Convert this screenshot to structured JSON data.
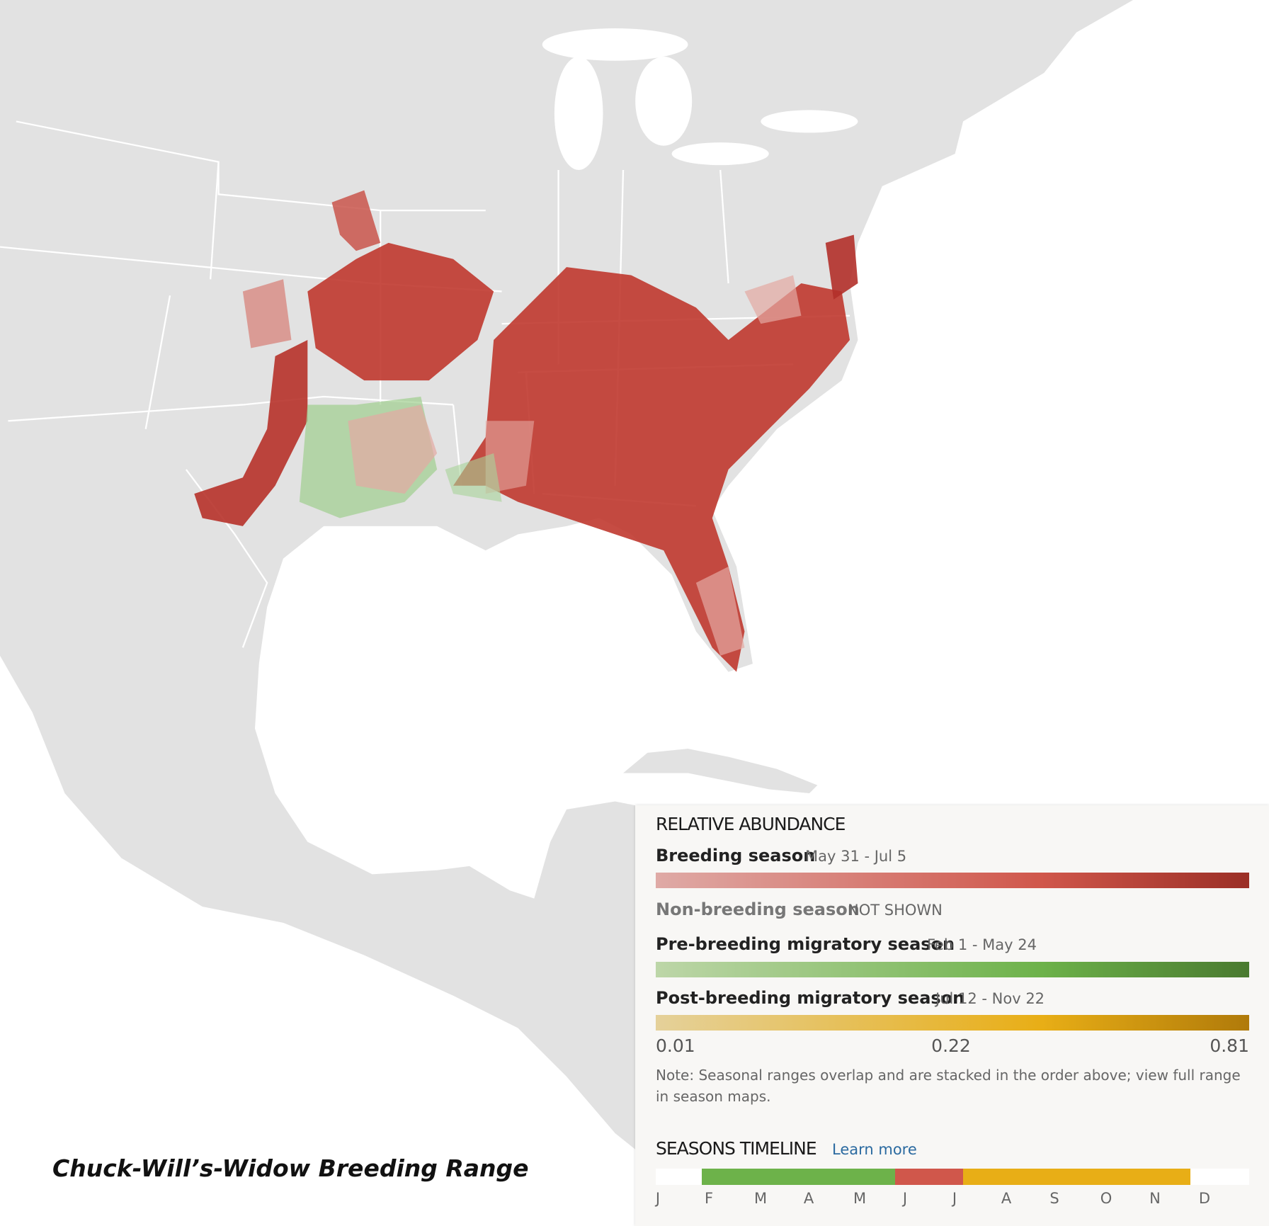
{
  "title": "Chuck-Will’s-Widow Breeding Range",
  "legend": {
    "heading": "RELATIVE ABUNDANCE",
    "seasons": [
      {
        "name": "Breeding season",
        "dates": "May 31 - Jul 5"
      },
      {
        "name": "Non-breeding season",
        "dates": "NOT SHOWN"
      },
      {
        "name": "Pre-breeding migratory season",
        "dates": "Feb 1 - May 24"
      },
      {
        "name": "Post-breeding migratory season",
        "dates": "Jul 12 - Nov 22"
      }
    ],
    "scale_labels": [
      "0.01",
      "0.22",
      "0.81"
    ],
    "note": "Note: Seasonal ranges overlap and are stacked in the order above; view full range in season maps."
  },
  "timeline": {
    "heading": "SEASONS TIMELINE",
    "link": "Learn more",
    "months": [
      "J",
      "F",
      "M",
      "A",
      "M",
      "J",
      "J",
      "A",
      "S",
      "O",
      "N",
      "D"
    ]
  }
}
